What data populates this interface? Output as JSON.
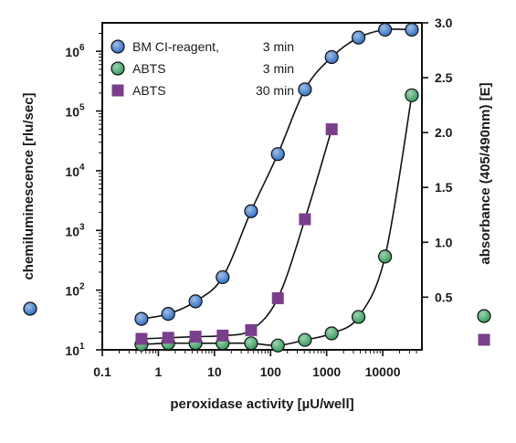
{
  "chart_data": {
    "type": "scatter",
    "title": "",
    "xlabel": "peroxidase activity [µU/well]",
    "ylabel_left": "chemiluminescence [rlu/sec]",
    "ylabel_right": "absorbance (405/490nm) [E]",
    "x_scale": "log",
    "xlim": [
      0.1,
      50000
    ],
    "x_ticks": [
      {
        "value": 0.1,
        "label": "0.1"
      },
      {
        "value": 1,
        "label": "1"
      },
      {
        "value": 10,
        "label": "10"
      },
      {
        "value": 100,
        "label": "100"
      },
      {
        "value": 1000,
        "label": "1000"
      },
      {
        "value": 10000,
        "label": "10000"
      }
    ],
    "y_left_scale": "log",
    "y_left_lim": [
      10,
      3000000
    ],
    "y_left_ticks": [
      {
        "value": 10,
        "base": "10",
        "exp": "1"
      },
      {
        "value": 100,
        "base": "10",
        "exp": "2"
      },
      {
        "value": 1000,
        "base": "10",
        "exp": "3"
      },
      {
        "value": 10000,
        "base": "10",
        "exp": "4"
      },
      {
        "value": 100000,
        "base": "10",
        "exp": "5"
      },
      {
        "value": 1000000,
        "base": "10",
        "exp": "6"
      }
    ],
    "y_right_scale": "linear",
    "y_right_lim": [
      0.02,
      3.0
    ],
    "y_right_ticks": [
      {
        "value": 0.5,
        "label": "0.5"
      },
      {
        "value": 1.0,
        "label": "1.0"
      },
      {
        "value": 1.5,
        "label": "1.5"
      },
      {
        "value": 2.0,
        "label": "2.0"
      },
      {
        "value": 2.5,
        "label": "2.5"
      },
      {
        "value": 3.0,
        "label": "3.0"
      }
    ],
    "grid": false,
    "legend": {
      "position": "top-left",
      "entries": [
        {
          "label": "BM CI-reagent,",
          "time": "3 min",
          "marker": "circle",
          "color": "#2b6cc4"
        },
        {
          "label": "ABTS",
          "time": "3 min",
          "marker": "circle",
          "color": "#2e9a56"
        },
        {
          "label": "ABTS",
          "time": "30 min",
          "marker": "square",
          "color": "#7a3f8c"
        }
      ]
    },
    "series": [
      {
        "axis": "left",
        "marker": "circle",
        "color": "#2b6cc4",
        "x": [
          0.5,
          1.5,
          4.6,
          14,
          45,
          135,
          410,
          1230,
          3700,
          11000,
          33000
        ],
        "y": [
          33,
          40,
          65,
          165,
          2100,
          19000,
          230000,
          800000,
          1700000,
          2300000,
          2300000
        ]
      },
      {
        "axis": "right",
        "marker": "circle",
        "color": "#2e9a56",
        "x": [
          0.5,
          1.5,
          4.6,
          14,
          45,
          135,
          410,
          1230,
          3700,
          11000,
          33000
        ],
        "y": [
          0.07,
          0.08,
          0.08,
          0.08,
          0.08,
          0.06,
          0.11,
          0.17,
          0.32,
          0.87,
          2.34
        ]
      },
      {
        "axis": "right",
        "marker": "square",
        "color": "#7a3f8c",
        "x": [
          0.5,
          1.5,
          4.6,
          14,
          45,
          135,
          410,
          1230
        ],
        "y": [
          0.12,
          0.13,
          0.14,
          0.15,
          0.2,
          0.49,
          1.21,
          2.03
        ]
      }
    ],
    "left_axis_key": {
      "marker": "circle",
      "color": "#2b6cc4"
    },
    "right_axis_key": [
      {
        "marker": "circle",
        "color": "#2e9a56"
      },
      {
        "marker": "square",
        "color": "#7a3f8c"
      }
    ]
  }
}
